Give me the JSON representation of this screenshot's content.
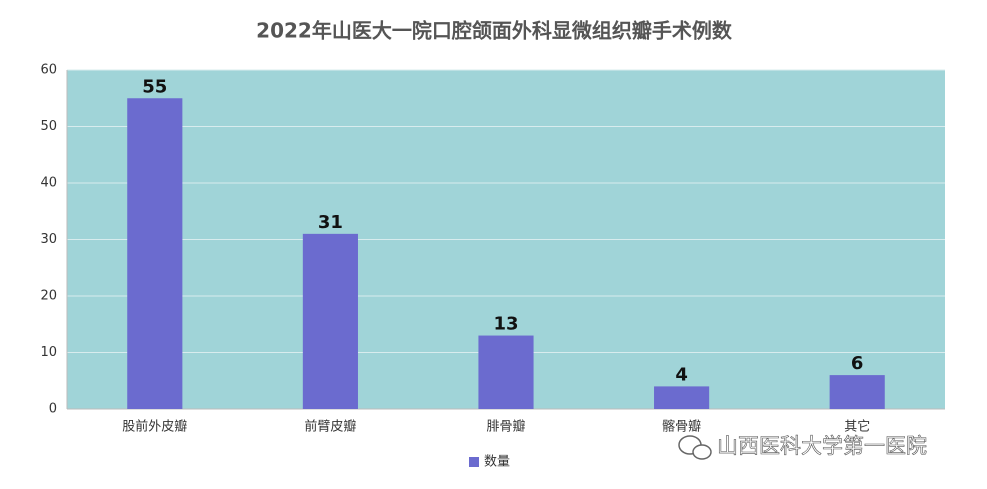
{
  "chart_data": {
    "type": "bar",
    "title": "2022年山医大一院口腔颌面外科显微组织瓣手术例数",
    "categories": [
      "股前外皮瓣",
      "前臂皮瓣",
      "腓骨瓣",
      "髂骨瓣",
      "其它"
    ],
    "series": [
      {
        "name": "数量",
        "color": "#6b6bcf",
        "values": [
          55,
          31,
          13,
          4,
          6
        ]
      }
    ],
    "ylim": [
      0,
      60
    ],
    "yticks": [
      0,
      10,
      20,
      30,
      40,
      50,
      60
    ],
    "grid": true,
    "legend": "bottom",
    "watermark": "山西医科大学第一医院"
  }
}
